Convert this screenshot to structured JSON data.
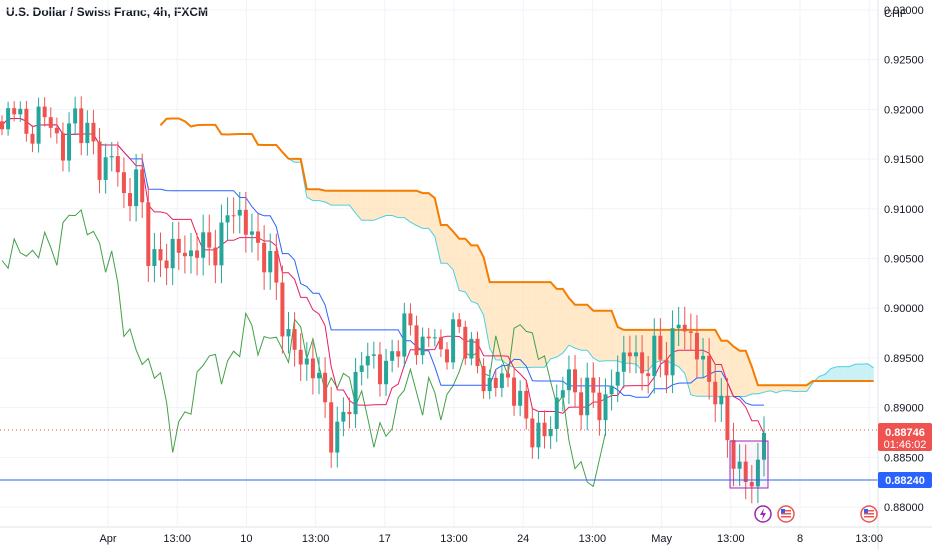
{
  "header": {
    "symbol_title": "U.S. Dollar / Swiss Franc, 4h, FXCM"
  },
  "price_axis": {
    "currency": "CHF"
  },
  "badges": {
    "current_price": "0.88746",
    "countdown": "01:46:02",
    "alert_price": "0.88240"
  },
  "icons": [
    "lightning-event-icon",
    "us-flag-event-icon",
    "us-flag-event-icon"
  ],
  "colors": {
    "up_candle": "#26a69a",
    "down_candle": "#ef5350",
    "tenkan": "#e91e63",
    "kijun": "#2962ff",
    "chikou": "#43a047",
    "senkou_b": "#f57c00",
    "cloud_bull": "#b2ebf2",
    "cloud_bear": "#ffe0b2",
    "alert_line": "#2962ff"
  },
  "chart_data": {
    "type": "candlestick",
    "title": "U.S. Dollar / Swiss Franc, 4h, FXCM",
    "y_ticks": [
      "0.93000",
      "0.92500",
      "0.92000",
      "0.91500",
      "0.91000",
      "0.90500",
      "0.90000",
      "0.89500",
      "0.89000",
      "0.88500",
      "0.88000"
    ],
    "x_ticks": [
      "Apr",
      "13:00",
      "10",
      "13:00",
      "17",
      "13:00",
      "24",
      "13:00",
      "May",
      "13:00",
      "8",
      "13:00"
    ],
    "ylim": [
      0.878,
      0.931
    ],
    "grid": true,
    "indicators": [
      "Ichimoku Cloud"
    ],
    "series": [
      {
        "name": "price",
        "path": [
          0.9172,
          0.9215,
          0.9165,
          0.9198,
          0.9182,
          0.916,
          0.9195,
          0.9175,
          0.914,
          0.9155,
          0.9108,
          0.913,
          0.9055,
          0.904,
          0.9068,
          0.9045,
          0.907,
          0.9052,
          0.908,
          0.9105,
          0.9075,
          0.906,
          0.904,
          0.8978,
          0.895,
          0.8945,
          0.892,
          0.886,
          0.89,
          0.8935,
          0.896,
          0.8925,
          0.8965,
          0.8985,
          0.896,
          0.8975,
          0.895,
          0.8985,
          0.896,
          0.893,
          0.892,
          0.8935,
          0.8905,
          0.888,
          0.8865,
          0.89,
          0.8935,
          0.8905,
          0.8918,
          0.8895,
          0.894,
          0.896,
          0.8935,
          0.8955,
          0.8945,
          0.8985,
          0.8975,
          0.894,
          0.892,
          0.887,
          0.8835,
          0.882,
          0.8875
        ]
      },
      {
        "name": "current_price",
        "values": [
          0.88746
        ]
      },
      {
        "name": "alert_level",
        "values": [
          0.8824
        ]
      }
    ]
  }
}
